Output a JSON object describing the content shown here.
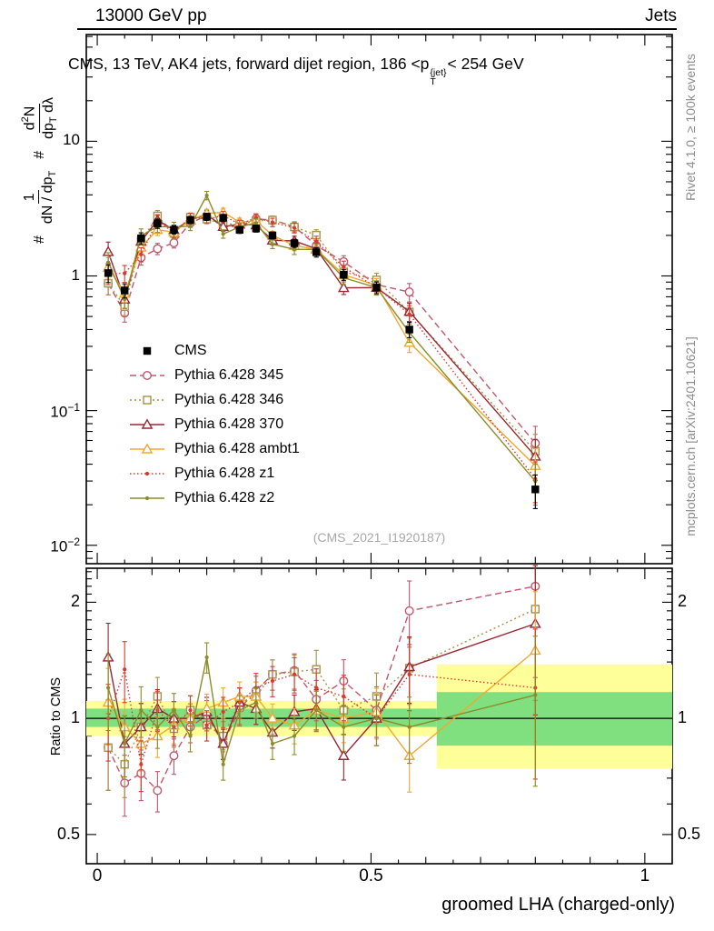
{
  "header": {
    "left": "13000 GeV pp",
    "right": "Jets"
  },
  "title": {
    "prefix": "CMS, 13 TeV, AK4 jets, forward dijet region, 186 <p",
    "sup": "{jet}",
    "sub": "T",
    "suffix": "< 254 GeV"
  },
  "ylabel_main": {
    "hash": "#",
    "num1": "1",
    "den1": "dN / dp",
    "den1_sub": "T",
    "num2": "d",
    "num2_sup": "2",
    "num2_tail": "N",
    "den2": "dp",
    "den2_sub": "T",
    "den2_tail": " dλ"
  },
  "ratio_ylabel": "Ratio to CMS",
  "xlabel": "groomed LHA (charged-only)",
  "watermark": "(CMS_2021_I1920187)",
  "side_text_top": "Rivet 4.1.0, ≥ 100k events",
  "side_text_bottom": "mcplots.cern.ch [arXiv:2401.10621]",
  "axes": {
    "x_ticks": [
      {
        "v": 0,
        "label": "0"
      },
      {
        "v": 0.5,
        "label": "0.5"
      },
      {
        "v": 1,
        "label": "1"
      }
    ],
    "y_ticks_main": [
      {
        "v": 10,
        "base": "10",
        "exp": ""
      },
      {
        "v": 1,
        "base": "1",
        "exp": ""
      },
      {
        "v": 0.1,
        "base": "10",
        "exp": "−1"
      },
      {
        "v": 0.01,
        "base": "10",
        "exp": "−2"
      }
    ],
    "ratio_ticks": [
      {
        "v": 2,
        "label": "2"
      },
      {
        "v": 1,
        "label": "1"
      },
      {
        "v": 0.5,
        "label": "0.5"
      }
    ]
  },
  "chart_data": {
    "type": "line",
    "title": "CMS, 13 TeV, AK4 jets, forward dijet region, 186 < pT{jet} < 254 GeV",
    "x_axis_label": "groomed LHA (charged-only)",
    "y_axis_label": "1/(dN/dpT) d²N/(dpT dλ)",
    "ratio_axis_label": "Ratio to CMS",
    "x": [
      0.02,
      0.05,
      0.08,
      0.11,
      0.14,
      0.17,
      0.2,
      0.23,
      0.26,
      0.29,
      0.32,
      0.36,
      0.4,
      0.45,
      0.51,
      0.57,
      0.8
    ],
    "xlim": [
      -0.02,
      1.05
    ],
    "ylim_main": [
      0.0073,
      62
    ],
    "ylim_ratio": [
      0.42,
      2.45
    ],
    "cms": {
      "label": "CMS",
      "color": "#000000",
      "values": [
        1.05,
        0.78,
        1.9,
        2.45,
        2.2,
        2.6,
        2.75,
        2.7,
        2.2,
        2.25,
        2.0,
        1.75,
        1.5,
        1.02,
        0.82,
        0.4,
        0.026
      ],
      "err_frac": [
        0.15,
        0.12,
        0.1,
        0.08,
        0.07,
        0.06,
        0.06,
        0.06,
        0.06,
        0.06,
        0.06,
        0.07,
        0.08,
        0.09,
        0.1,
        0.13,
        0.28
      ]
    },
    "series": [
      {
        "name": "Pythia 6.428 345",
        "color": "#c2566e",
        "dash": "7,4",
        "marker": "circle",
        "ratio": [
          0.84,
          0.68,
          0.72,
          0.65,
          0.8,
          0.95,
          1.02,
          0.86,
          1.06,
          1.18,
          1.3,
          1.33,
          1.12,
          1.25,
          1.05,
          1.9,
          2.2
        ]
      },
      {
        "name": "Pythia 6.428 346",
        "color": "#a89048",
        "dash": "2,3",
        "marker": "square",
        "ratio": [
          0.84,
          0.76,
          0.95,
          1.14,
          0.94,
          1.05,
          0.96,
          0.9,
          1.1,
          1.14,
          1.3,
          1.32,
          1.34,
          1.05,
          1.14,
          1.35,
          1.92
        ]
      },
      {
        "name": "Pythia 6.428 370",
        "color": "#992633",
        "dash": "",
        "marker": "triangle",
        "ratio": [
          1.44,
          0.86,
          0.95,
          1.06,
          1.0,
          1.0,
          1.04,
          0.86,
          1.1,
          1.06,
          0.92,
          1.04,
          1.06,
          0.8,
          1.0,
          1.36,
          1.76
        ]
      },
      {
        "name": "Pythia 6.428 ambt1",
        "color": "#f0a830",
        "dash": "",
        "marker": "triangle",
        "ratio": [
          1.1,
          0.95,
          0.86,
          0.9,
          0.96,
          1.0,
          1.06,
          1.1,
          1.14,
          1.14,
          1.0,
          0.96,
          1.05,
          1.0,
          1.04,
          0.8,
          1.5
        ]
      },
      {
        "name": "Pythia 6.428 z1",
        "color": "#d93a2e",
        "dash": "1.5,2.5",
        "marker": "dot",
        "ratio": [
          1.0,
          1.34,
          0.76,
          1.05,
          0.95,
          1.05,
          0.96,
          1.04,
          1.1,
          1.2,
          1.25,
          1.3,
          1.2,
          1.14,
          1.0,
          1.3,
          1.2
        ]
      },
      {
        "name": "Pythia 6.428 z2",
        "color": "#8c8c28",
        "dash": "",
        "marker": "dot",
        "ratio": [
          1.2,
          0.86,
          1.05,
          0.95,
          1.05,
          0.9,
          1.44,
          0.76,
          1.05,
          1.1,
          0.86,
          0.9,
          1.05,
          0.95,
          1.0,
          0.95,
          1.15
        ]
      }
    ],
    "bands": {
      "yellow": {
        "color": "#ffff99",
        "segments": [
          {
            "x0": -0.02,
            "x1": 0.62,
            "lo": 0.9,
            "hi": 1.11
          },
          {
            "x0": 0.62,
            "x1": 1.05,
            "lo": 0.74,
            "hi": 1.38
          }
        ]
      },
      "green": {
        "color": "#80e080",
        "segments": [
          {
            "x0": -0.02,
            "x1": 0.62,
            "lo": 0.95,
            "hi": 1.06
          },
          {
            "x0": 0.62,
            "x1": 1.05,
            "lo": 0.85,
            "hi": 1.17
          }
        ]
      }
    },
    "legend_position": "left-middle",
    "grid": false
  }
}
